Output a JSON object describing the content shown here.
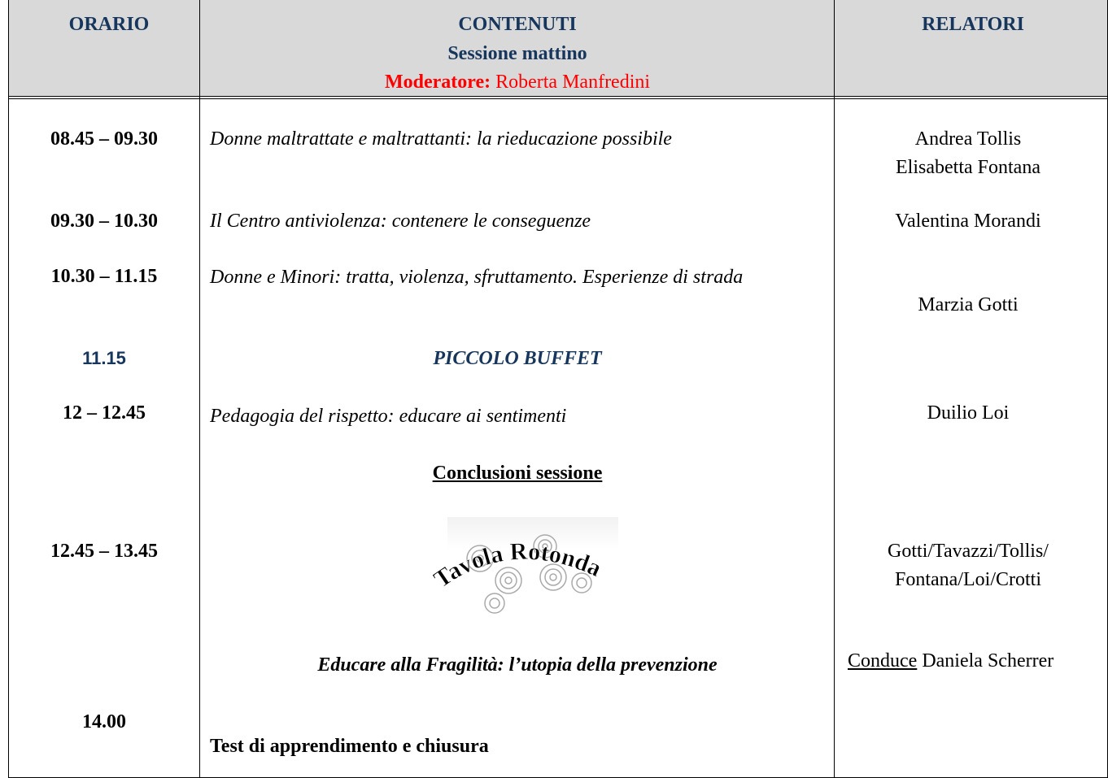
{
  "header": {
    "time": "ORARIO",
    "contents": "CONTENUTI",
    "session": "Sessione mattino",
    "moderator_label": "Moderatore:",
    "moderator": "Roberta Manfredini",
    "speakers": "RELATORI"
  },
  "rows": [
    {
      "time": "08.45 – 09.30",
      "content": "Donne maltrattate e maltrattanti: la rieducazione possibile",
      "speakers": [
        "Andrea Tollis",
        "Elisabetta Fontana"
      ]
    },
    {
      "time": "09.30 – 10.30",
      "content": "Il Centro antiviolenza: contenere le conseguenze",
      "speakers": [
        "Valentina Morandi"
      ]
    },
    {
      "time": "10.30 – 11.15",
      "content": "Donne e Minori: tratta, violenza, sfruttamento. Esperienze di strada",
      "speakers": [
        "Marzia Gotti"
      ]
    },
    {
      "time": "11.15",
      "content": "PICCOLO BUFFET"
    },
    {
      "time": "12 – 12.45",
      "content": "Pedagogia del rispetto: educare ai sentimenti",
      "speakers": [
        "Duilio Loi"
      ]
    },
    {
      "content": "Conclusioni sessione"
    },
    {
      "time": "12.45 – 13.45",
      "image_text": "Tavola Rotonda",
      "speakers": [
        "Gotti/Tavazzi/Tollis/",
        "Fontana/Loi/Crotti"
      ]
    },
    {
      "content": "Educare alla Fragilità: l’utopia della prevenzione",
      "speaker_label": "Conduce",
      "speaker": "Daniela Scherrer"
    },
    {
      "time": "14.00",
      "content": "Test di apprendimento e chiusura"
    }
  ]
}
